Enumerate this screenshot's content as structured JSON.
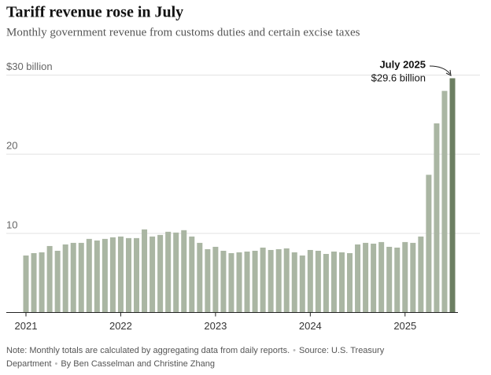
{
  "chart_data": {
    "type": "bar",
    "title": "Tariff revenue rose in July",
    "subtitle": "Monthly government revenue from customs duties and certain excise taxes",
    "categories": [
      "2021",
      null,
      null,
      null,
      null,
      null,
      null,
      null,
      null,
      null,
      null,
      null,
      "2022",
      null,
      null,
      null,
      null,
      null,
      null,
      null,
      null,
      null,
      null,
      null,
      "2023",
      null,
      null,
      null,
      null,
      null,
      null,
      null,
      null,
      null,
      null,
      null,
      "2024",
      null,
      null,
      null,
      null,
      null,
      null,
      null,
      null,
      null,
      null,
      null,
      "2025",
      null,
      null,
      null,
      null,
      null,
      null
    ],
    "values": [
      7.2,
      7.5,
      7.6,
      8.4,
      7.8,
      8.6,
      8.8,
      8.8,
      9.3,
      9.1,
      9.3,
      9.5,
      9.6,
      9.4,
      9.4,
      10.5,
      9.6,
      9.8,
      10.2,
      10.1,
      10.4,
      9.6,
      8.8,
      8.0,
      8.3,
      7.8,
      7.5,
      7.6,
      7.7,
      7.8,
      8.2,
      7.9,
      8.0,
      8.1,
      7.6,
      7.2,
      7.9,
      7.8,
      7.4,
      7.7,
      7.6,
      7.5,
      8.6,
      8.8,
      8.7,
      8.9,
      8.3,
      8.2,
      8.9,
      8.8,
      9.6,
      17.4,
      23.9,
      28.0,
      29.6
    ],
    "color": "#aab6a3",
    "highlight_color": "#6c7f62",
    "ylim": [
      0,
      30
    ],
    "yticks": [
      10,
      20,
      {
        "value": 30,
        "label": "$30 billion"
      }
    ],
    "grid": true,
    "annotation": {
      "title": "July 2025",
      "text": "$29.6 billion"
    },
    "note": "Note: Monthly totals are calculated by aggregating data from daily reports.",
    "source": "Source: U.S. Treasury Department",
    "byline": "By Ben Casselman and Christine Zhang"
  }
}
